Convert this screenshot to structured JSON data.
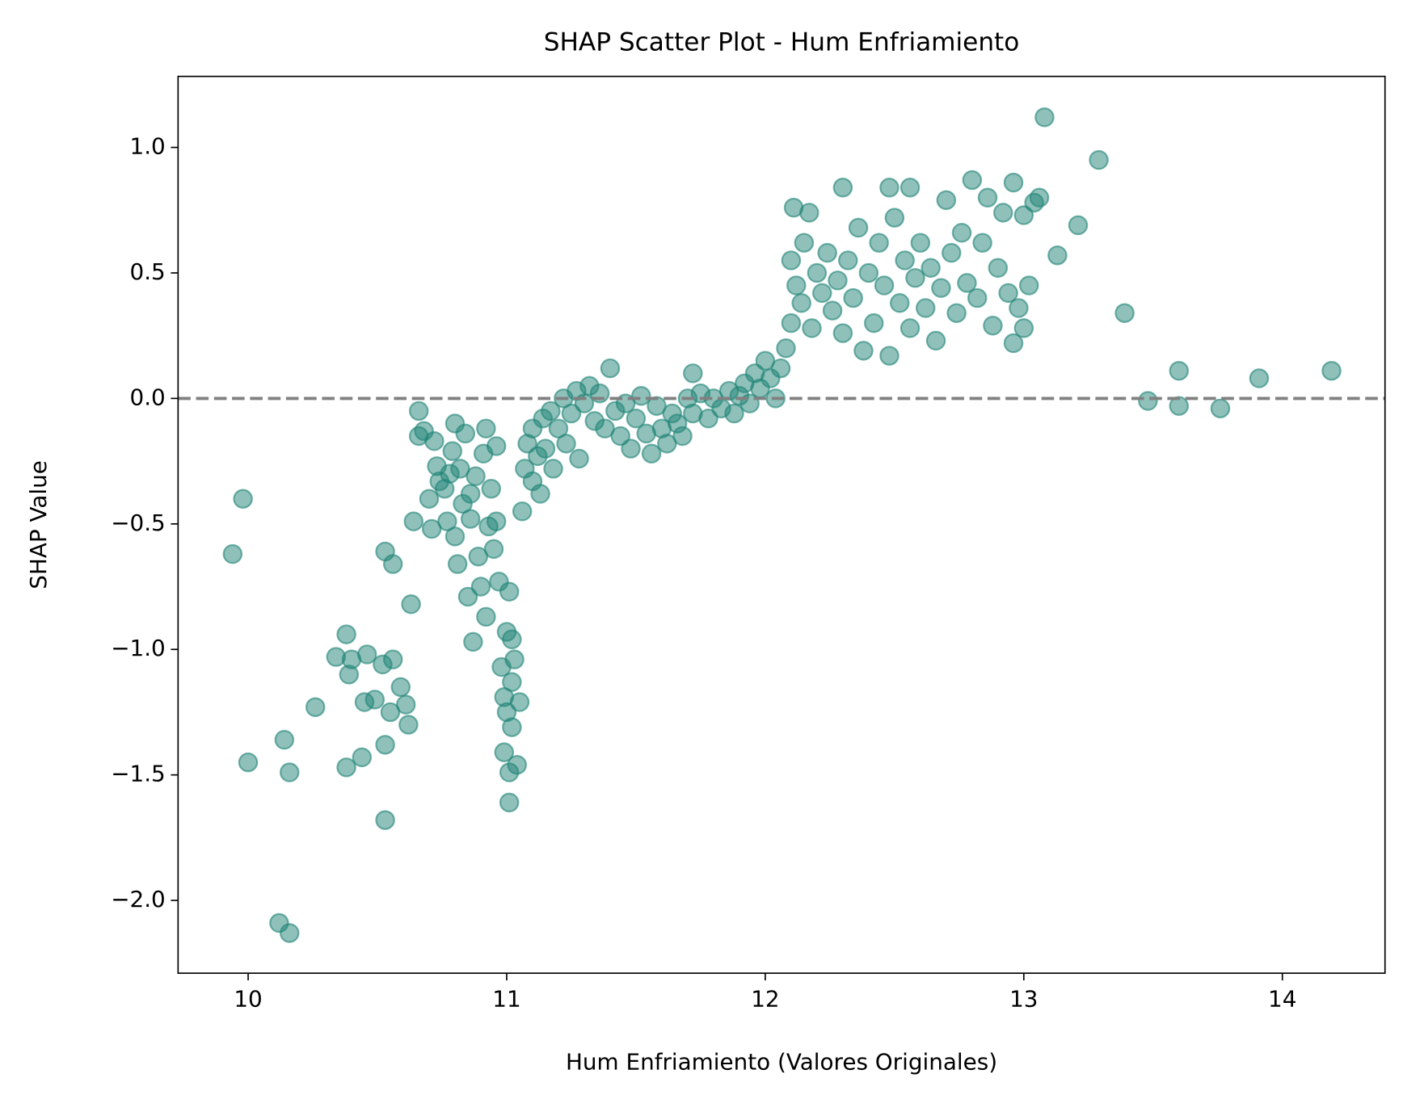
{
  "chart_data": {
    "type": "scatter",
    "title": "SHAP Scatter Plot - Hum Enfriamiento",
    "xlabel": "Hum Enfriamiento (Valores Originales)",
    "ylabel": "SHAP Value",
    "color": "#208476",
    "hline": 0,
    "xlim": [
      9.729,
      14.397
    ],
    "ylim": [
      -2.29,
      1.283
    ],
    "xticks": [
      10,
      11,
      12,
      13,
      14
    ],
    "yticks": [
      {
        "value": 1.0,
        "label": "1.0"
      },
      0.5,
      {
        "value": 0.0,
        "label": "0.0"
      },
      {
        "value": -0.5,
        "label": "−0.5"
      },
      {
        "value": -1.0,
        "label": "−1.0"
      },
      {
        "value": -1.5,
        "label": "−1.5"
      },
      {
        "value": -2.0,
        "label": "−2.0"
      }
    ],
    "x": [
      9.94,
      9.98,
      10.0,
      10.12,
      10.14,
      10.16,
      10.16,
      10.26,
      10.34,
      10.38,
      10.38,
      10.39,
      10.4,
      10.44,
      10.45,
      10.46,
      10.49,
      10.52,
      10.53,
      10.53,
      10.53,
      10.55,
      10.56,
      10.56,
      10.59,
      10.61,
      10.62,
      10.63,
      10.64,
      10.66,
      10.66,
      10.68,
      10.7,
      10.71,
      10.72,
      10.73,
      10.74,
      10.76,
      10.77,
      10.78,
      10.79,
      10.8,
      10.8,
      10.81,
      10.82,
      10.83,
      10.84,
      10.85,
      10.86,
      10.86,
      10.87,
      10.88,
      10.89,
      10.9,
      10.91,
      10.92,
      10.92,
      10.93,
      10.94,
      10.95,
      10.96,
      10.96,
      10.97,
      10.98,
      10.99,
      10.99,
      11.0,
      11.0,
      11.01,
      11.01,
      11.01,
      11.02,
      11.02,
      11.02,
      11.03,
      11.04,
      11.05,
      11.06,
      11.07,
      11.08,
      11.1,
      11.1,
      11.12,
      11.13,
      11.14,
      11.15,
      11.17,
      11.18,
      11.2,
      11.22,
      11.23,
      11.25,
      11.27,
      11.28,
      11.3,
      11.32,
      11.34,
      11.36,
      11.38,
      11.4,
      11.42,
      11.44,
      11.46,
      11.48,
      11.5,
      11.52,
      11.54,
      11.56,
      11.58,
      11.6,
      11.62,
      11.64,
      11.66,
      11.68,
      11.7,
      11.72,
      11.72,
      11.75,
      11.78,
      11.8,
      11.83,
      11.86,
      11.88,
      11.9,
      11.92,
      11.94,
      11.96,
      11.98,
      12.0,
      12.02,
      12.04,
      12.06,
      12.08,
      12.1,
      12.1,
      12.11,
      12.12,
      12.14,
      12.15,
      12.17,
      12.18,
      12.2,
      12.22,
      12.24,
      12.26,
      12.28,
      12.3,
      12.3,
      12.32,
      12.34,
      12.36,
      12.38,
      12.4,
      12.42,
      12.44,
      12.46,
      12.48,
      12.48,
      12.5,
      12.52,
      12.54,
      12.56,
      12.56,
      12.58,
      12.6,
      12.62,
      12.64,
      12.66,
      12.68,
      12.7,
      12.72,
      12.74,
      12.76,
      12.78,
      12.8,
      12.82,
      12.84,
      12.86,
      12.88,
      12.9,
      12.92,
      12.94,
      12.96,
      12.96,
      12.98,
      13.0,
      13.0,
      13.02,
      13.04,
      13.06,
      13.08,
      13.13,
      13.21,
      13.29,
      13.39,
      13.48,
      13.6,
      13.6,
      13.76,
      13.91,
      14.19
    ],
    "y": [
      -0.62,
      -0.4,
      -1.45,
      -2.09,
      -1.36,
      -2.13,
      -1.49,
      -1.23,
      -1.03,
      -0.94,
      -1.47,
      -1.1,
      -1.04,
      -1.43,
      -1.21,
      -1.02,
      -1.2,
      -1.06,
      -0.61,
      -1.68,
      -1.38,
      -1.25,
      -0.66,
      -1.04,
      -1.15,
      -1.22,
      -1.3,
      -0.82,
      -0.49,
      -0.05,
      -0.15,
      -0.13,
      -0.4,
      -0.52,
      -0.17,
      -0.27,
      -0.33,
      -0.36,
      -0.49,
      -0.3,
      -0.21,
      -0.1,
      -0.55,
      -0.66,
      -0.28,
      -0.42,
      -0.14,
      -0.79,
      -0.38,
      -0.48,
      -0.97,
      -0.31,
      -0.63,
      -0.75,
      -0.22,
      -0.12,
      -0.87,
      -0.51,
      -0.36,
      -0.6,
      -0.19,
      -0.49,
      -0.73,
      -1.07,
      -1.19,
      -1.41,
      -0.93,
      -1.25,
      -0.77,
      -1.61,
      -1.49,
      -1.31,
      -0.96,
      -1.13,
      -1.04,
      -1.46,
      -1.21,
      -0.45,
      -0.28,
      -0.18,
      -0.33,
      -0.12,
      -0.23,
      -0.38,
      -0.08,
      -0.2,
      -0.05,
      -0.28,
      -0.12,
      0.0,
      -0.18,
      -0.06,
      0.03,
      -0.24,
      -0.02,
      0.05,
      -0.09,
      0.02,
      -0.12,
      0.12,
      -0.05,
      -0.15,
      -0.02,
      -0.2,
      -0.08,
      0.01,
      -0.14,
      -0.22,
      -0.03,
      -0.12,
      -0.18,
      -0.06,
      -0.1,
      -0.15,
      0.0,
      0.1,
      -0.06,
      0.02,
      -0.08,
      0.0,
      -0.04,
      0.03,
      -0.06,
      0.01,
      0.06,
      -0.02,
      0.1,
      0.04,
      0.15,
      0.08,
      0.0,
      0.12,
      0.2,
      0.3,
      0.55,
      0.76,
      0.45,
      0.38,
      0.62,
      0.74,
      0.28,
      0.5,
      0.42,
      0.58,
      0.35,
      0.47,
      0.84,
      0.26,
      0.55,
      0.4,
      0.68,
      0.19,
      0.5,
      0.3,
      0.62,
      0.45,
      0.84,
      0.17,
      0.72,
      0.38,
      0.55,
      0.84,
      0.28,
      0.48,
      0.62,
      0.36,
      0.52,
      0.23,
      0.44,
      0.79,
      0.58,
      0.34,
      0.66,
      0.46,
      0.87,
      0.4,
      0.62,
      0.8,
      0.29,
      0.52,
      0.74,
      0.42,
      0.86,
      0.22,
      0.36,
      0.73,
      0.28,
      0.45,
      0.78,
      0.8,
      1.12,
      0.57,
      0.69,
      0.95,
      0.34,
      -0.01,
      0.11,
      -0.03,
      -0.04,
      0.08,
      0.11
    ]
  }
}
